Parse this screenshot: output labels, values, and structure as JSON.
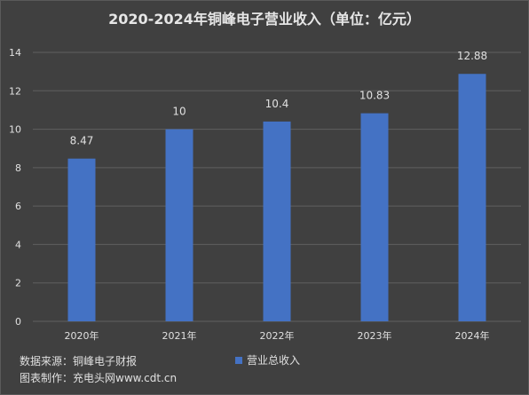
{
  "chart_data": {
    "type": "bar",
    "title": "2020-2024年铜峰电子营业收入（单位：亿元）",
    "categories": [
      "2020年",
      "2021年",
      "2022年",
      "2023年",
      "2024年"
    ],
    "series": [
      {
        "name": "营业总收入",
        "values": [
          8.47,
          10,
          10.4,
          10.83,
          12.88
        ],
        "labels": [
          "8.47",
          "10",
          "10.4",
          "10.83",
          "12.88"
        ]
      }
    ],
    "ylim": [
      0,
      14
    ],
    "yticks": [
      0,
      2,
      4,
      6,
      8,
      10,
      12,
      14
    ],
    "grid": true,
    "legend": "bottom",
    "bar_color": "#4472c4",
    "grid_color": "#5f5f5f",
    "text_color": "#e0e0e0"
  },
  "footer": {
    "source": "数据来源：铜峰电子财报",
    "credit": "图表制作：充电头网www.cdt.cn"
  }
}
